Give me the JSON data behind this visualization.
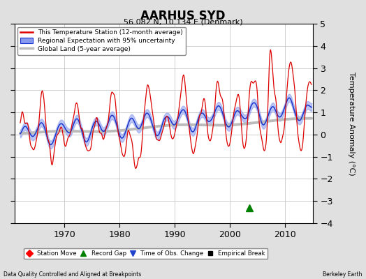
{
  "title": "AARHUS SYD",
  "subtitle": "56.082 N, 10.134 E (Denmark)",
  "ylabel": "Temperature Anomaly (°C)",
  "xlim": [
    1961,
    2015
  ],
  "ylim": [
    -4,
    5
  ],
  "yticks": [
    -4,
    -3,
    -2,
    -1,
    0,
    1,
    2,
    3,
    4,
    5
  ],
  "xticks": [
    1970,
    1980,
    1990,
    2000,
    2010
  ],
  "background_color": "#e0e0e0",
  "plot_bg_color": "#ffffff",
  "grid_color": "#c8c8c8",
  "station_color": "#dd0000",
  "regional_color": "#1a35cc",
  "regional_fill_color": "#8899ee",
  "global_color": "#bbbbbb",
  "legend_labels": [
    "This Temperature Station (12-month average)",
    "Regional Expectation with 95% uncertainty",
    "Global Land (5-year average)"
  ],
  "bottom_labels": [
    "Station Move",
    "Record Gap",
    "Time of Obs. Change",
    "Empirical Break"
  ],
  "footer_left": "Data Quality Controlled and Aligned at Breakpoints",
  "footer_right": "Berkeley Earth",
  "record_gap_x": 2003.5,
  "record_gap_y": -3.3,
  "title_fontsize": 12,
  "subtitle_fontsize": 8,
  "ylabel_fontsize": 8
}
